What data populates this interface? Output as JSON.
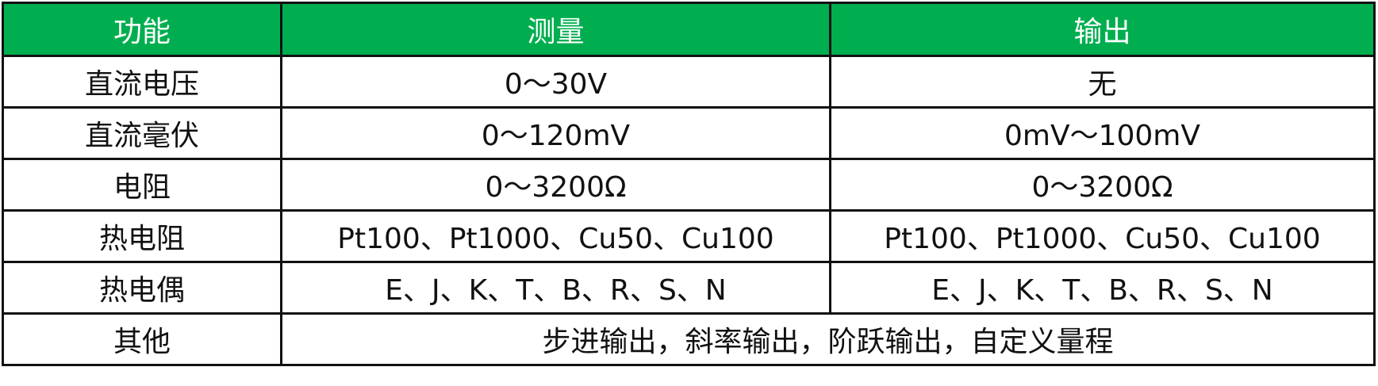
{
  "header_color": "#00ae4f",
  "headers": [
    "功能",
    "测量",
    "输出"
  ],
  "rows": [
    {
      "function": "直流电压",
      "measure": "0～30V",
      "output": "无"
    },
    {
      "function": "直流毫伏",
      "measure": "0～120mV",
      "output": "0mV～100mV"
    },
    {
      "function": "电阻",
      "measure": "0～3200Ω",
      "output": "0～3200Ω"
    },
    {
      "function": "热电阻",
      "measure": "Pt100、Pt1000、Cu50、Cu100",
      "output": "Pt100、Pt1000、Cu50、Cu100"
    },
    {
      "function": "热电偶",
      "measure": "E、J、K、T、B、R、S、N",
      "output": "E、J、K、T、B、R、S、N"
    }
  ],
  "other": {
    "function": "其他",
    "value": "步进输出，斜率输出，阶跃输出，自定义量程"
  }
}
